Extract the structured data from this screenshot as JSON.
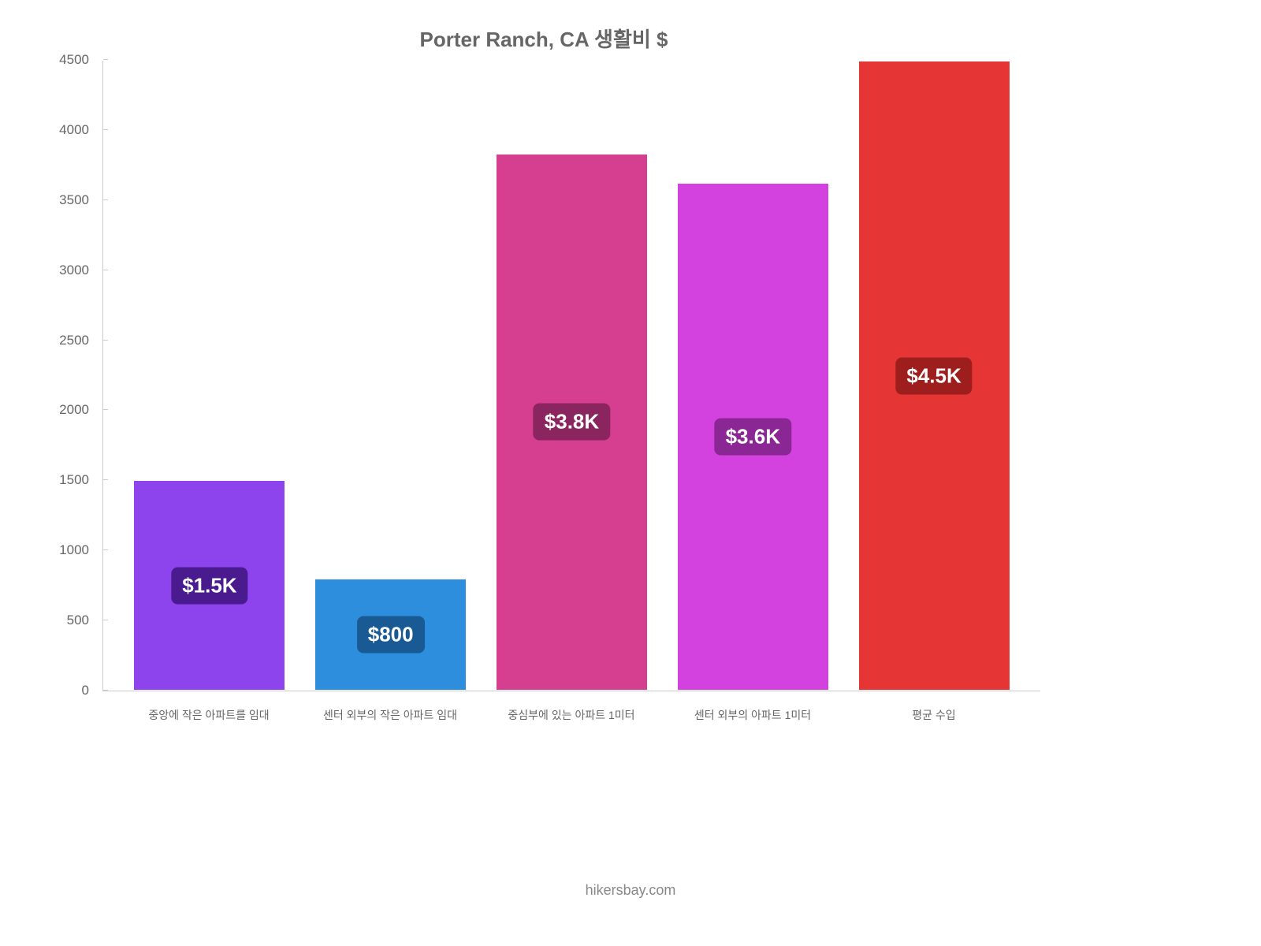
{
  "chart": {
    "type": "bar",
    "title": "Porter Ranch, CA 생활비 $",
    "title_fontsize": 26,
    "title_color": "#666666",
    "background_color": "#ffffff",
    "axis_color": "#cccccc",
    "tick_label_color": "#666666",
    "tick_label_fontsize": 17,
    "x_label_fontsize": 14,
    "ylim": [
      0,
      4500
    ],
    "ytick_step": 500,
    "yticks": [
      0,
      500,
      1000,
      1500,
      2000,
      2500,
      3000,
      3500,
      4000,
      4500
    ],
    "bar_width_ratio": 0.84,
    "categories": [
      "중앙에 작은 아파트를 임대",
      "센터 외부의 작은 아파트 임대",
      "중심부에 있는 아파트 1미터",
      "센터 외부의 아파트 1미터",
      "평균 수입"
    ],
    "values": [
      1500,
      800,
      3833,
      3625,
      4500
    ],
    "value_labels": [
      "$1.5K",
      "$800",
      "$3.8K",
      "$3.6K",
      "$4.5K"
    ],
    "bar_colors": [
      "#8e44ec",
      "#2e8ede",
      "#d63e8f",
      "#d342de",
      "#e63535"
    ],
    "label_bg_colors": [
      "#4a1b8f",
      "#1a5a94",
      "#8a2560",
      "#8a2794",
      "#9e1d1d"
    ],
    "label_fontsize": 26,
    "label_color": "#ffffff",
    "label_border_radius": 8
  },
  "footer": {
    "credit": "hikersbay.com",
    "fontsize": 18,
    "color": "#888888"
  }
}
